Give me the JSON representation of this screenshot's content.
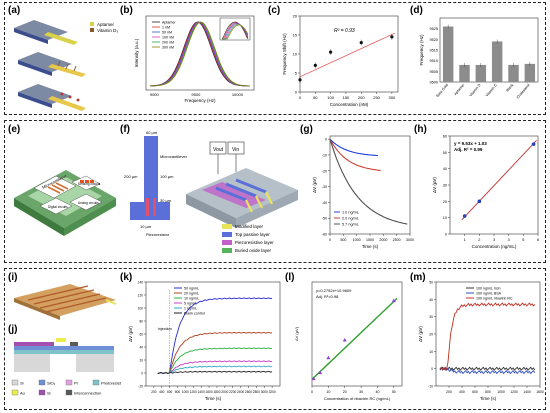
{
  "panels": {
    "a": "(a)",
    "b": "(b)",
    "c": "(c)",
    "d": "(d)",
    "e": "(e)",
    "f": "(f)",
    "g": "(g)",
    "h": "(h)",
    "i": "(i)",
    "j": "(j)",
    "k": "(k)",
    "l": "(l)",
    "m": "(m)"
  },
  "panel_a": {
    "legend_1": "Aptamer",
    "legend_2": "Vitamin D₃"
  },
  "panel_e": {
    "chip_1": "Microcantilever",
    "chip_2": "Sensing circuits",
    "chip_3": "Digital circuits",
    "chip_4": "Analog circuits"
  },
  "panel_f": {
    "labels": [
      "60 µm",
      "Microcantilever",
      "200 µm",
      "100 µm",
      "30 µm",
      "10 µm",
      "Piezoresistor"
    ],
    "vout": "Vout",
    "vin": "Vin",
    "legend": [
      {
        "label": "Modified layer",
        "color": "#e9e35a"
      },
      {
        "label": "Top passive layer",
        "color": "#5a6fd8"
      },
      {
        "label": "Piezoresistive layer",
        "color": "#c060c8"
      },
      {
        "label": "Buried oxide layer",
        "color": "#57b35c"
      }
    ]
  },
  "panel_j": {
    "legend": [
      {
        "label": "Si",
        "color": "#d8d8d8"
      },
      {
        "label": "SiO₂",
        "color": "#6f8fd6"
      },
      {
        "label": "Pt",
        "color": "#e2a0e0"
      },
      {
        "label": "Photoresist",
        "color": "#7fc3c9"
      },
      {
        "label": "Au",
        "color": "#ecec4a"
      },
      {
        "label": "Si",
        "color": "#a24fae"
      },
      {
        "label": "Interconnection",
        "color": "#5a5a5a"
      }
    ]
  },
  "chart_data": [
    {
      "id": "b",
      "type": "line",
      "xlabel": "Frequency (Hz)",
      "ylabel": "Intensity (a.u.)",
      "x_ticks": [
        "9000",
        "9500",
        "10000"
      ],
      "series": [
        {
          "name": "Aptamer",
          "color": "#222222",
          "center": 9520
        },
        {
          "name": "1 nM",
          "color": "#e03030",
          "center": 9528
        },
        {
          "name": "50 nM",
          "color": "#3050d0",
          "center": 9536
        },
        {
          "name": "100 nM",
          "color": "#d040c0",
          "center": 9544
        },
        {
          "name": "200 nM",
          "color": "#20a050",
          "center": 9552
        },
        {
          "name": "300 nM",
          "color": "#808000",
          "center": 9560
        }
      ]
    },
    {
      "id": "c",
      "type": "scatter",
      "xlabel": "Concentration (nM)",
      "ylabel": "Frequency Shift (Hz)",
      "annotation": "R² = 0.93",
      "xlim": [
        0,
        320
      ],
      "ylim": [
        0,
        20
      ],
      "x_ticks": [
        0,
        50,
        100,
        150,
        200,
        250,
        300
      ],
      "y_ticks": [
        0,
        5,
        10,
        15,
        20
      ],
      "points": [
        {
          "x": 0,
          "y": 3.2
        },
        {
          "x": 50,
          "y": 7.0
        },
        {
          "x": 100,
          "y": 10.5
        },
        {
          "x": 200,
          "y": 13.0
        },
        {
          "x": 300,
          "y": 14.5
        }
      ],
      "fit": {
        "x0": 0,
        "y0": 4.0,
        "x1": 310,
        "y1": 15.5
      }
    },
    {
      "id": "d",
      "type": "bar",
      "ylabel": "Frequency (Hz)",
      "ylim": [
        9500,
        9530
      ],
      "y_ticks": [
        9500,
        9505,
        9510,
        9515,
        9520,
        9525
      ],
      "categories": [
        "Bare Gold",
        "Aptamer",
        "Vitamin D",
        "Vitamin C",
        "Blank",
        "Cholesterol"
      ],
      "values": [
        9526,
        9508,
        9508,
        9519,
        9508,
        9508.5
      ]
    },
    {
      "id": "g",
      "type": "line",
      "xlabel": "Time (s)",
      "ylabel": "ΔV (µV)",
      "xlim": [
        0,
        3000
      ],
      "ylim": [
        -60,
        2
      ],
      "x_ticks": [
        0,
        500,
        1000,
        1500,
        2000,
        2500,
        3000
      ],
      "y_ticks": [
        0,
        -10,
        -20,
        -30,
        -40,
        -50,
        -60
      ],
      "series": [
        {
          "name": "1.0 ng/mL",
          "color": "#2040e0",
          "end_time": 1800,
          "plateau": -11
        },
        {
          "name": "2.0 ng/mL",
          "color": "#d04030",
          "end_time": 1900,
          "plateau": -21
        },
        {
          "name": "5.7 ng/mL",
          "color": "#505050",
          "end_time": 2900,
          "plateau": -57
        }
      ]
    },
    {
      "id": "h",
      "type": "scatter",
      "xlabel": "Concentration (ng/mL)",
      "ylabel": "ΔV (µV)",
      "annotation_1": "y = 9.53x + 1.03",
      "annotation_2": "Adj. R² = 0.99",
      "xlim": [
        0,
        6
      ],
      "ylim": [
        0,
        60
      ],
      "x_ticks": [
        1,
        2,
        3,
        4,
        5,
        6
      ],
      "y_ticks": [
        0,
        10,
        20,
        30,
        40,
        50,
        60
      ],
      "points": [
        {
          "x": 1,
          "y": 11
        },
        {
          "x": 2,
          "y": 20
        },
        {
          "x": 5.7,
          "y": 55
        }
      ],
      "fit": {
        "x0": 0.8,
        "y0": 8.6,
        "x1": 5.9,
        "y1": 57.3
      }
    },
    {
      "id": "k",
      "type": "line",
      "xlabel": "Time (s)",
      "ylabel": "ΔV (µV)",
      "annotation": "Injection",
      "xlim": [
        0,
        3400
      ],
      "ylim": [
        -20,
        140
      ],
      "x_ticks": [
        200,
        400,
        600,
        800,
        1000,
        1200,
        1400,
        1600,
        1800,
        2000,
        2200,
        2400,
        2600,
        2800,
        3000,
        3200
      ],
      "y_ticks": [
        -20,
        0,
        20,
        40,
        60,
        80,
        100,
        120,
        140
      ],
      "series": [
        {
          "name": "50 ng/mL",
          "color": "#2a2ad0",
          "plateau": 115
        },
        {
          "name": "20 ng/mL",
          "color": "#b04020",
          "plateau": 62
        },
        {
          "name": "10 ng/mL",
          "color": "#2ab040",
          "plateau": 38
        },
        {
          "name": "5 ng/mL",
          "color": "#c83cc8",
          "plateau": 18
        },
        {
          "name": "1 ng/mL",
          "color": "#30a8c8",
          "plateau": 10
        },
        {
          "name": "Blank control",
          "color": "#222222",
          "plateau": 2
        }
      ]
    },
    {
      "id": "l",
      "type": "scatter",
      "xlabel": "Concentration of ribavirin RC (ng/mL)",
      "ylabel": "ΔV (µV)",
      "annotation_1": "y=0.2752x+10.9609",
      "annotation_2": "Adj. R²=0.98",
      "xlim": [
        0,
        55
      ],
      "ylim": [
        0,
        140
      ],
      "x_ticks": [
        0,
        10,
        20,
        30,
        40,
        50
      ],
      "points": [
        {
          "x": 1,
          "y": 10
        },
        {
          "x": 5,
          "y": 18
        },
        {
          "x": 10,
          "y": 38
        },
        {
          "x": 20,
          "y": 62
        },
        {
          "x": 50,
          "y": 115
        }
      ],
      "fit": {
        "x0": 0,
        "y0": 9,
        "x1": 52,
        "y1": 118
      }
    },
    {
      "id": "m",
      "type": "line",
      "xlabel": "Time (s)",
      "ylabel": "ΔV (µV)",
      "xlim": [
        0,
        1600
      ],
      "ylim": [
        -10,
        50
      ],
      "x_ticks": [
        200,
        400,
        600,
        800,
        1000,
        1200,
        1400,
        1600
      ],
      "y_ticks": [
        -10,
        0,
        10,
        20,
        30,
        40,
        50
      ],
      "series": [
        {
          "name": "100 ng/mL ricin",
          "color": "#333333",
          "plateau": 0
        },
        {
          "name": "100 ng/mL BSA",
          "color": "#3050c0",
          "plateau": -2
        },
        {
          "name": "100 ng/mL ribavirin RC",
          "color": "#c03020",
          "plateau": 37
        }
      ]
    }
  ]
}
